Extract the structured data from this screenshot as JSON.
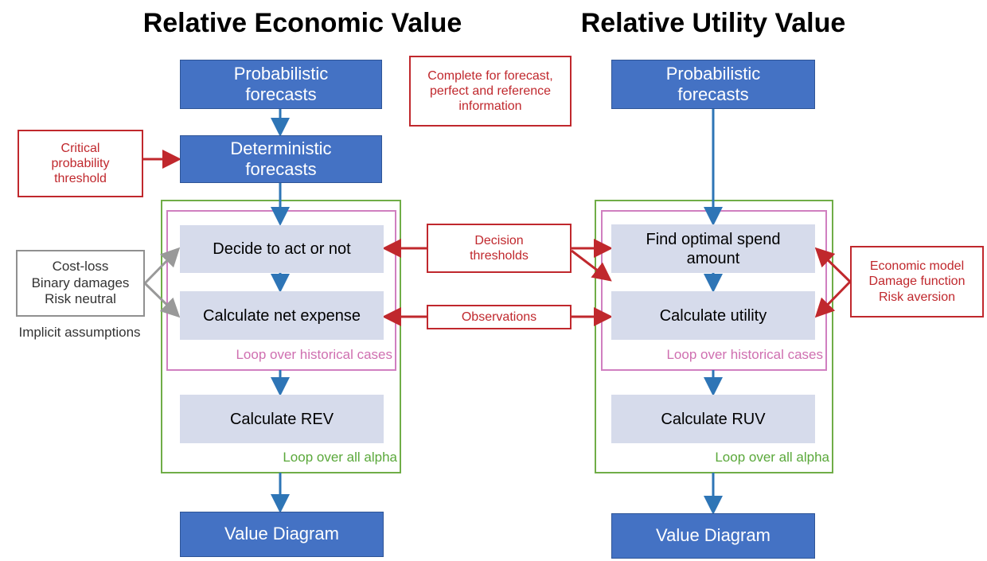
{
  "titles": [
    "Relative Economic Value",
    "Relative Utility Value"
  ],
  "nodes": [
    {
      "lines": [
        "Probabilistic",
        "forecasts"
      ]
    },
    {
      "lines": [
        "Deterministic",
        "forecasts"
      ]
    },
    {
      "lines": [
        "Decide to act or not"
      ]
    },
    {
      "lines": [
        "Calculate net expense"
      ]
    },
    {
      "lines": [
        "Calculate REV"
      ]
    },
    {
      "lines": [
        "Value Diagram"
      ]
    },
    {
      "lines": [
        "Probabilistic",
        "forecasts"
      ]
    },
    {
      "lines": [
        "Find optimal spend",
        "amount"
      ]
    },
    {
      "lines": [
        "Calculate utility"
      ]
    },
    {
      "lines": [
        "Calculate RUV"
      ]
    },
    {
      "lines": [
        "Value Diagram"
      ]
    }
  ],
  "loops": [
    "Loop over historical cases",
    "Loop over all alpha",
    "Loop over historical cases",
    "Loop over all alpha"
  ],
  "notes": [
    {
      "lines": [
        "Complete for forecast,",
        "perfect and reference",
        "information"
      ]
    },
    {
      "lines": [
        "Critical",
        "probability",
        "threshold"
      ]
    },
    {
      "lines": [
        "Decision",
        "thresholds"
      ]
    },
    {
      "lines": [
        "Observations"
      ]
    },
    {
      "lines": [
        "Economic model",
        "Damage function",
        "Risk aversion"
      ]
    }
  ],
  "assumptions": {
    "lines": [
      "Cost-loss",
      "Binary damages",
      "Risk neutral"
    ],
    "caption": "Implicit assumptions"
  }
}
